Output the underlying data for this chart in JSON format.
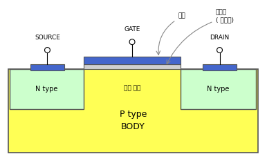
{
  "bg_color": "#ffffff",
  "body_color": "#ffff55",
  "ntype_color": "#ccffcc",
  "gate_metal_color": "#4466cc",
  "gate_oxide_color": "#d0d0d0",
  "contact_color": "#4466cc",
  "border_color": "#555555",
  "text_color": "#000000",
  "arrow_color": "#888888",
  "source_label": "SOURCE",
  "gate_label": "GATE",
  "drain_label": "DRAIN",
  "ntype_label": "N type",
  "channel_label": "소널 영역",
  "body_label": "P type\nBODY",
  "metal_label": "금속",
  "oxide_label": "산화막\n( 절연체)"
}
